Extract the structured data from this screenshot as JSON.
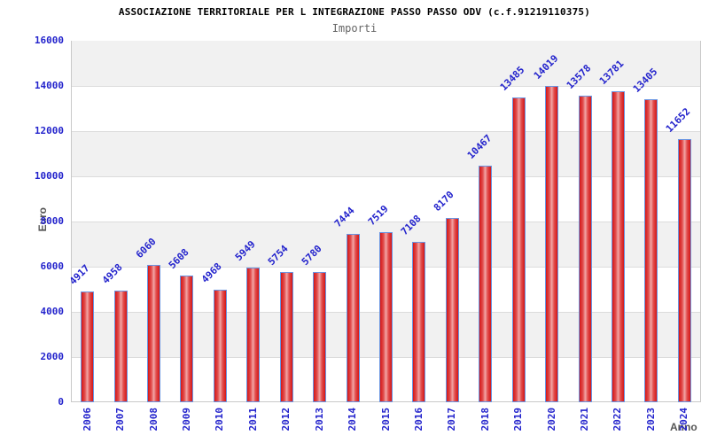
{
  "header": {
    "title": "ASSOCIAZIONE TERRITORIALE PER L INTEGRAZIONE PASSO PASSO ODV (c.f.91219110375)",
    "subtitle": "Importi"
  },
  "chart_data": {
    "type": "bar",
    "title": "ASSOCIAZIONE TERRITORIALE PER L INTEGRAZIONE PASSO PASSO ODV (c.f.91219110375)",
    "subtitle": "Importi",
    "xlabel": "Anno",
    "ylabel": "Euro",
    "categories": [
      "2006",
      "2007",
      "2008",
      "2009",
      "2010",
      "2011",
      "2012",
      "2013",
      "2014",
      "2015",
      "2016",
      "2017",
      "2018",
      "2019",
      "2020",
      "2021",
      "2022",
      "2023",
      "2024"
    ],
    "values": [
      4917,
      4958,
      6060,
      5608,
      4968,
      5949,
      5754,
      5780,
      7444,
      7519,
      7108,
      8170,
      10467,
      13485,
      14019,
      13578,
      13781,
      13405,
      11652
    ],
    "ylim": [
      0,
      16000
    ],
    "ytick_step": 2000,
    "yticks": [
      0,
      2000,
      4000,
      6000,
      8000,
      10000,
      12000,
      14000,
      16000
    ],
    "bar_value_labels": true,
    "value_label_rotation_deg": -45,
    "x_label_rotation_deg": -90,
    "legend": "none",
    "grid": "horizontal-alternating-bands",
    "colors": {
      "bar_fill_edge": "#d41616",
      "bar_fill_mid": "#e25050",
      "bar_fill_center": "#f2a6a6",
      "bar_border": "#6a95e2",
      "label_text": "#2323cc",
      "axis_title_text": "#555555",
      "band_fill": "#f1f1f1",
      "grid_line": "#dcdcdc",
      "plot_border": "#c9c9c9",
      "title_text": "#000000",
      "subtitle_text": "#666666"
    }
  }
}
